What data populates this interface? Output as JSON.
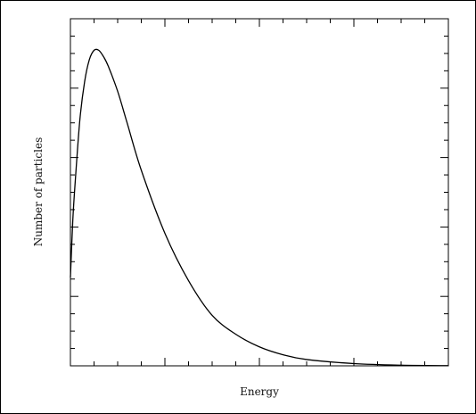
{
  "chart_data": {
    "type": "line",
    "title": "",
    "xlabel": "Energy",
    "ylabel": "Number of particles",
    "xlim": [
      0,
      8
    ],
    "ylim": [
      0,
      1.1
    ],
    "x_ticks_shown": false,
    "y_ticks_shown": false,
    "grid": false,
    "series": [
      {
        "x": [
          0,
          0.05,
          0.1,
          0.2,
          0.3,
          0.4,
          0.5,
          0.6,
          0.7,
          0.8,
          1.0,
          1.2,
          1.5,
          2.0,
          2.5,
          3.0,
          3.5,
          4.0,
          4.5,
          5.0,
          6.0,
          7.0,
          8.0
        ],
        "y": [
          0.28,
          0.46,
          0.58,
          0.78,
          0.9,
          0.97,
          1.0,
          1.0,
          0.98,
          0.95,
          0.87,
          0.77,
          0.62,
          0.42,
          0.27,
          0.16,
          0.1,
          0.06,
          0.035,
          0.02,
          0.007,
          0.002,
          0.0006
        ]
      }
    ]
  }
}
